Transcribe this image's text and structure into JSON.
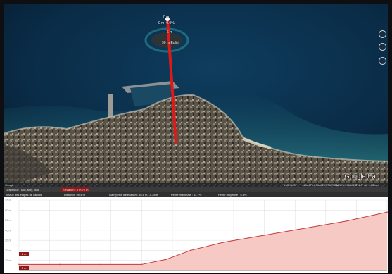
{
  "map": {
    "overlay_labels": {
      "top_distance": "0 m",
      "top_slope": "0 m  -0.0%",
      "mid_label": "6 m",
      "place_label": "90 m  Eglizt"
    },
    "google_logo": "Google Ea",
    "status_bar": [
      "Google",
      "1982/1987",
      "41&#176;27&#8217;38.76\" N",
      "3&#176;49&#8217;1.5\"",
      "5 m",
      "alt. 2.08 km"
    ],
    "path_color": "#e01818",
    "water_color": "#0b3452"
  },
  "profile": {
    "stats_top": {
      "graph_label": "Graphique : Min, Moy, Max",
      "elevation_label": "Élévation : 6 m  70 m",
      "highlight_color": "#8b1a1a"
    },
    "stats_bottom": {
      "range_label": "Totaux des étapes de calculs",
      "distance_label": "Distance : 901 m",
      "gain_label": "Gain/perte d'élévation : 46.8 m, -0.28 m",
      "max_slope_label": "Pente maximale : 14.7%",
      "avg_slope_label": "Pente moyenne : 5.8%"
    },
    "y_ticks": [
      "70 m",
      "60 m",
      "50 m",
      "40 m",
      "30 m",
      "20 m",
      "10 m"
    ],
    "start_flag": "6 m",
    "origin_flag": "0 m",
    "fill_color": "#f7c9c4",
    "line_color": "#c23a3a"
  },
  "chart_data": {
    "type": "area",
    "title": "",
    "x_label": "",
    "y_label": "",
    "x": [
      0,
      100,
      200,
      300,
      360,
      420,
      500,
      600,
      700,
      800,
      901
    ],
    "values": [
      6,
      6,
      6,
      6,
      11,
      20,
      28,
      35,
      42,
      49,
      58
    ],
    "ylim": [
      0,
      70
    ],
    "grid": true
  }
}
